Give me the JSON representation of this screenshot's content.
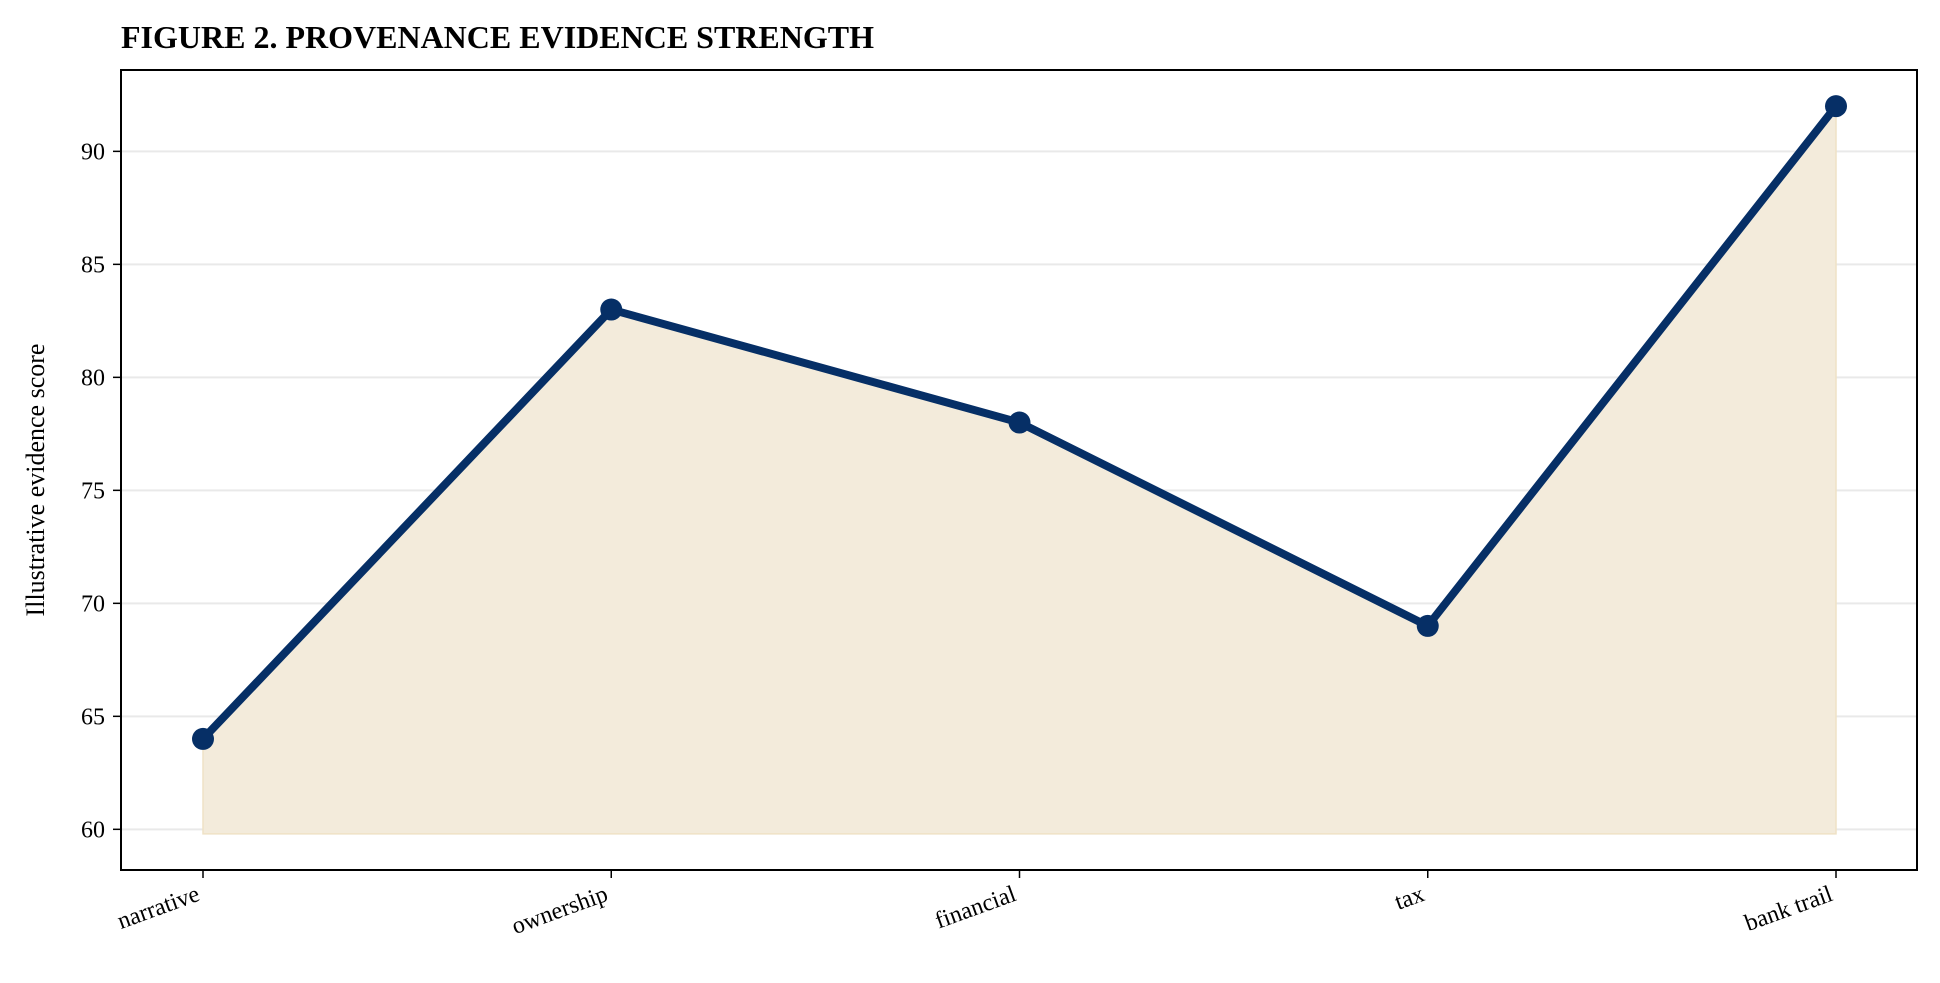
{
  "chart_data": {
    "type": "area",
    "title": "FIGURE 2. PROVENANCE EVIDENCE STRENGTH",
    "xlabel": "",
    "ylabel": "Illustrative evidence score",
    "categories": [
      "narrative",
      "ownership",
      "financial",
      "tax",
      "bank trail"
    ],
    "values": [
      64,
      83,
      78,
      69,
      92
    ],
    "fill_baseline": 59.8,
    "ylim": [
      58.2,
      93.6
    ],
    "yticks": [
      60,
      65,
      70,
      75,
      80,
      85,
      90
    ],
    "grid": "horizontal",
    "colors": {
      "line": "#062f66",
      "fill": "#f3ebdb",
      "grid": "#e9e9e9"
    }
  }
}
